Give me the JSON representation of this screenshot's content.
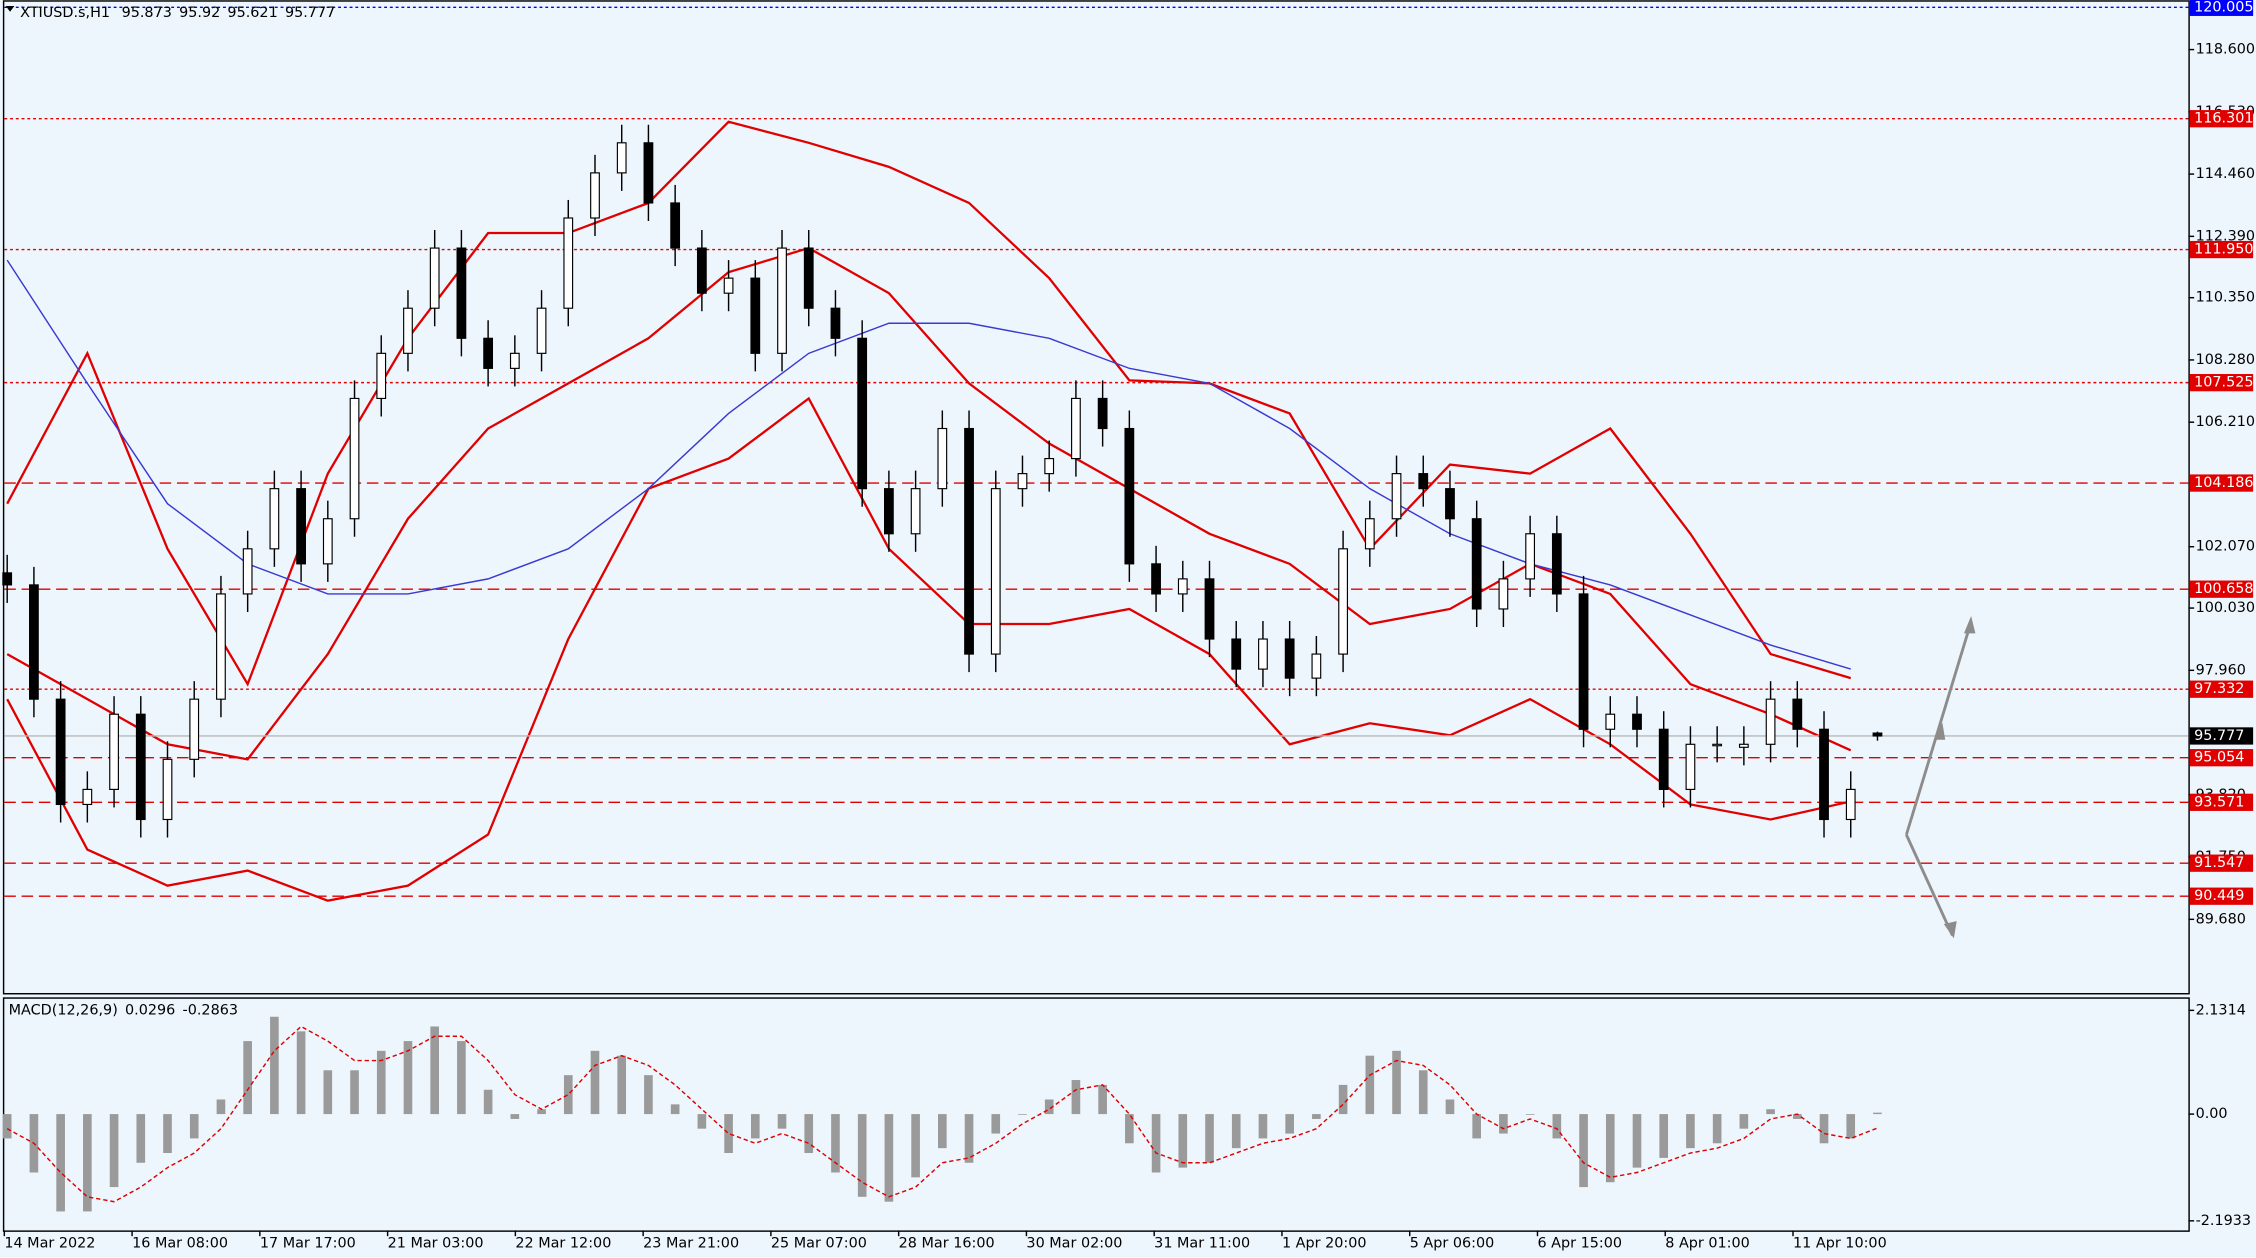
{
  "chart_data": {
    "type": "candlestick",
    "symbol": "XTIUSD.s,H1",
    "candles": [
      [
        101.2,
        101.8,
        100.2,
        100.8
      ],
      [
        100.8,
        101.4,
        96.4,
        97
      ],
      [
        97,
        97.6,
        92.9,
        93.5
      ],
      [
        93.5,
        94.6,
        92.9,
        94
      ],
      [
        94,
        97.1,
        93.4,
        96.5
      ],
      [
        96.5,
        97.1,
        92.4,
        93
      ],
      [
        93,
        95.6,
        92.4,
        95
      ],
      [
        95,
        97.6,
        94.4,
        97
      ],
      [
        97,
        101.1,
        96.4,
        100.5
      ],
      [
        100.5,
        102.6,
        99.9,
        102
      ],
      [
        102,
        104.6,
        101.4,
        104
      ],
      [
        104,
        104.6,
        100.9,
        101.5
      ],
      [
        101.5,
        103.6,
        100.9,
        103
      ],
      [
        103,
        107.6,
        102.4,
        107
      ],
      [
        107,
        109.1,
        106.4,
        108.5
      ],
      [
        108.5,
        110.6,
        107.9,
        110
      ],
      [
        110,
        112.6,
        109.4,
        112
      ],
      [
        112,
        112.6,
        108.4,
        109
      ],
      [
        109,
        109.6,
        107.4,
        108
      ],
      [
        108,
        109.1,
        107.4,
        108.5
      ],
      [
        108.5,
        110.6,
        107.9,
        110
      ],
      [
        110,
        113.6,
        109.4,
        113
      ],
      [
        113,
        115.1,
        112.4,
        114.5
      ],
      [
        114.5,
        116.1,
        113.9,
        115.5
      ],
      [
        115.5,
        116.1,
        112.9,
        113.5
      ],
      [
        113.5,
        114.1,
        111.4,
        112
      ],
      [
        112,
        112.6,
        109.9,
        110.5
      ],
      [
        110.5,
        111.6,
        109.9,
        111
      ],
      [
        111,
        111.6,
        107.9,
        108.5
      ],
      [
        108.5,
        112.6,
        107.9,
        112
      ],
      [
        112,
        112.6,
        109.4,
        110
      ],
      [
        110,
        110.6,
        108.4,
        109
      ],
      [
        109,
        109.6,
        103.4,
        104
      ],
      [
        104,
        104.6,
        101.9,
        102.5
      ],
      [
        102.5,
        104.6,
        101.9,
        104
      ],
      [
        104,
        106.6,
        103.4,
        106
      ],
      [
        106,
        106.6,
        97.9,
        98.5
      ],
      [
        98.5,
        104.6,
        97.9,
        104
      ],
      [
        104,
        105.1,
        103.4,
        104.5
      ],
      [
        104.5,
        105.6,
        103.9,
        105
      ],
      [
        105,
        107.6,
        104.4,
        107
      ],
      [
        107,
        107.6,
        105.4,
        106
      ],
      [
        106,
        106.6,
        100.9,
        101.5
      ],
      [
        101.5,
        102.1,
        99.9,
        100.5
      ],
      [
        100.5,
        101.6,
        99.9,
        101
      ],
      [
        101,
        101.6,
        98.4,
        99
      ],
      [
        99,
        99.6,
        97.4,
        98
      ],
      [
        98,
        99.6,
        97.4,
        99
      ],
      [
        99,
        99.6,
        97.1,
        97.7
      ],
      [
        97.7,
        99.1,
        97.1,
        98.5
      ],
      [
        98.5,
        102.6,
        97.9,
        102
      ],
      [
        102,
        103.6,
        101.4,
        103
      ],
      [
        103,
        105.1,
        102.4,
        104.5
      ],
      [
        104.5,
        105.1,
        103.4,
        104
      ],
      [
        104,
        104.6,
        102.4,
        103
      ],
      [
        103,
        103.6,
        99.4,
        100
      ],
      [
        100,
        101.6,
        99.4,
        101
      ],
      [
        101,
        103.1,
        100.4,
        102.5
      ],
      [
        102.5,
        103.1,
        99.9,
        100.5
      ],
      [
        100.5,
        101.1,
        95.4,
        96
      ],
      [
        96,
        97.1,
        95.4,
        96.5
      ],
      [
        96.5,
        97.1,
        95.4,
        96
      ],
      [
        96,
        96.6,
        93.4,
        94
      ],
      [
        94,
        96.1,
        93.4,
        95.5
      ],
      [
        95.5,
        96.1,
        94.9,
        95.5
      ],
      [
        95.4,
        96.1,
        94.8,
        95.5
      ],
      [
        95.5,
        97.6,
        94.9,
        97
      ],
      [
        97,
        97.6,
        95.4,
        96
      ],
      [
        96,
        96.6,
        92.4,
        93
      ],
      [
        93,
        94.6,
        92.4,
        94
      ],
      [
        95.873,
        95.92,
        95.621,
        95.777
      ]
    ],
    "ylim": [
      87.23,
      120.24
    ],
    "yticks": [
      {
        "value": 118.6,
        "label": "118.600"
      },
      {
        "value": 116.53,
        "label": "116.530"
      },
      {
        "value": 114.46,
        "label": "114.460"
      },
      {
        "value": 112.39,
        "label": "112.390"
      },
      {
        "value": 110.35,
        "label": "110.350"
      },
      {
        "value": 108.28,
        "label": "108.280"
      },
      {
        "value": 106.21,
        "label": "106.210"
      },
      {
        "value": 102.07,
        "label": "102.070"
      },
      {
        "value": 100.03,
        "label": "100.030"
      },
      {
        "value": 97.96,
        "label": "97.960"
      },
      {
        "value": 93.82,
        "label": "93.820"
      },
      {
        "value": 91.75,
        "label": "91.750"
      },
      {
        "value": 89.68,
        "label": "89.680"
      }
    ],
    "levels": [
      {
        "value": 120.005,
        "style": "dotted",
        "color": "#0000ff"
      },
      {
        "value": 116.301,
        "style": "dotted",
        "color": "#e00000"
      },
      {
        "value": 111.95,
        "label": "111.950",
        "style": "dotted",
        "color": "#e00000"
      },
      {
        "value": 107.525,
        "style": "dotted",
        "color": "#e00000"
      },
      {
        "value": 104.186,
        "style": "dashed",
        "color": "#e00000"
      },
      {
        "value": 100.658,
        "style": "dashed",
        "color": "#e00000"
      },
      {
        "value": 97.332,
        "style": "dotted",
        "color": "#e00000"
      },
      {
        "value": 95.054,
        "style": "dashed",
        "color": "#e00000"
      },
      {
        "value": 93.571,
        "style": "dashed",
        "color": "#e00000"
      },
      {
        "value": 91.547,
        "style": "dashed",
        "color": "#e00000"
      },
      {
        "value": 90.449,
        "style": "dashed",
        "color": "#e00000"
      }
    ],
    "indicators": {
      "x": [
        0,
        3,
        6,
        9,
        12,
        15,
        18,
        21,
        24,
        27,
        30,
        33,
        36,
        39,
        42,
        45,
        48,
        51,
        54,
        57,
        60,
        63,
        66,
        69
      ],
      "series": [
        {
          "color": "#e00000",
          "values": [
            103.5,
            108.5,
            102,
            97.5,
            104.5,
            109,
            112.5,
            112.5,
            113.5,
            116.2,
            115.5,
            114.7,
            113.5,
            111,
            107.6,
            107.5,
            106.5,
            102,
            104.8,
            104.5,
            106,
            102.5,
            98.5,
            97.7
          ]
        },
        {
          "color": "#e00000",
          "values": [
            98.5,
            97,
            95.5,
            95,
            98.5,
            103,
            106,
            107.5,
            109,
            111.2,
            112,
            110.5,
            107.5,
            105.5,
            104,
            102.5,
            101.5,
            99.5,
            100,
            101.5,
            100.5,
            97.5,
            96.5,
            95.3
          ]
        },
        {
          "color": "#e00000",
          "values": [
            97,
            92,
            90.8,
            91.3,
            90.3,
            90.8,
            92.5,
            99,
            104,
            105,
            107,
            102,
            99.5,
            99.5,
            100,
            98.5,
            95.5,
            96.2,
            95.8,
            97,
            95.5,
            93.5,
            93,
            93.6
          ]
        },
        {
          "color": "#3a3ad0",
          "values": [
            111.6,
            107.5,
            103.5,
            101.5,
            100.5,
            100.5,
            101,
            102,
            104,
            106.5,
            108.5,
            109.5,
            109.5,
            109,
            108,
            107.5,
            106,
            104,
            102.5,
            101.5,
            100.8,
            99.8,
            98.8,
            98
          ]
        }
      ]
    },
    "macd": {
      "label": "MACD(12,26,9)",
      "ylim": [
        -2.39,
        2.34
      ],
      "yticks": [
        2.1314,
        {
          "value": 0,
          "label": "0.00"
        },
        -2.1933
      ],
      "histogram": [
        -0.5,
        -1.2,
        -2,
        -2,
        -1.5,
        -1,
        -0.8,
        -0.5,
        0.3,
        1.5,
        2,
        1.7,
        0.9,
        0.9,
        1.3,
        1.5,
        1.8,
        1.5,
        0.5,
        -0.1,
        0.1,
        0.8,
        1.3,
        1.2,
        0.8,
        0.2,
        -0.3,
        -0.8,
        -0.5,
        -0.3,
        -0.8,
        -1.2,
        -1.7,
        -1.8,
        -1.3,
        -0.7,
        -1,
        -0.4,
        0,
        0.3,
        0.7,
        0.6,
        -0.6,
        -1.2,
        -1.1,
        -1,
        -0.7,
        -0.5,
        -0.4,
        -0.1,
        0.6,
        1.2,
        1.3,
        0.9,
        0.3,
        -0.5,
        -0.4,
        0,
        -0.5,
        -1.5,
        -1.4,
        -1.1,
        -0.9,
        -0.7,
        -0.6,
        -0.3,
        0.1,
        -0.1,
        -0.6,
        -0.5,
        0.0296
      ],
      "signal": [
        -0.3,
        -0.6,
        -1.2,
        -1.7,
        -1.8,
        -1.5,
        -1.1,
        -0.8,
        -0.3,
        0.5,
        1.3,
        1.8,
        1.5,
        1.1,
        1.1,
        1.3,
        1.6,
        1.6,
        1.1,
        0.4,
        0.1,
        0.4,
        1,
        1.2,
        1,
        0.6,
        0.1,
        -0.4,
        -0.6,
        -0.4,
        -0.6,
        -1,
        -1.4,
        -1.7,
        -1.5,
        -1,
        -0.9,
        -0.6,
        -0.2,
        0.1,
        0.5,
        0.6,
        0,
        -0.8,
        -1,
        -1,
        -0.8,
        -0.6,
        -0.5,
        -0.3,
        0.2,
        0.8,
        1.1,
        1,
        0.6,
        0,
        -0.3,
        -0.1,
        -0.3,
        -1,
        -1.3,
        -1.2,
        -1,
        -0.8,
        -0.7,
        -0.5,
        -0.1,
        0,
        -0.4,
        -0.5,
        -0.2863
      ]
    },
    "date_labels": [
      "14 Mar 2022",
      "16 Mar 08:00",
      "17 Mar 17:00",
      "21 Mar 03:00",
      "22 Mar 12:00",
      "23 Mar 21:00",
      "25 Mar 07:00",
      "28 Mar 16:00",
      "30 Mar 02:00",
      "31 Mar 11:00",
      "1 Apr 20:00",
      "5 Apr 06:00",
      "6 Apr 15:00",
      "8 Apr 01:00",
      "11 Apr 10:00"
    ]
  }
}
